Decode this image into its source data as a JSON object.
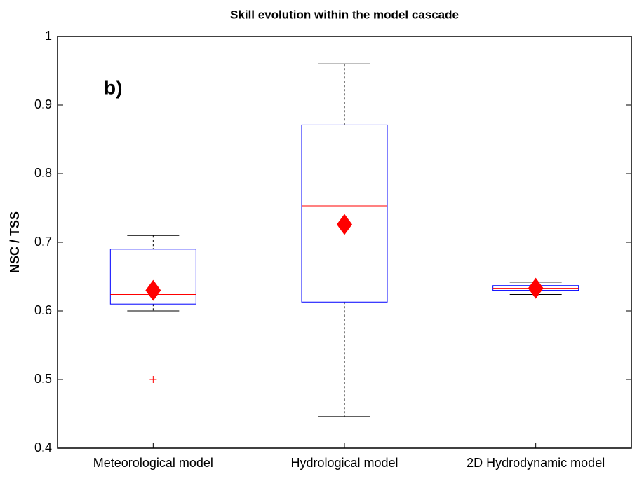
{
  "chart_data": {
    "type": "box",
    "title": "Skill evolution within the model cascade",
    "ylabel": "NSC / TSS",
    "annotation": "b)",
    "categories": [
      "Meteorological model",
      "Hydrological model",
      "2D Hydrodynamic model"
    ],
    "boxes": [
      {
        "whislo": 0.6,
        "q1": 0.61,
        "med": 0.624,
        "q3": 0.69,
        "whishi": 0.71,
        "mean": 0.63,
        "fliers": [
          0.5
        ]
      },
      {
        "whislo": 0.446,
        "q1": 0.613,
        "med": 0.753,
        "q3": 0.871,
        "whishi": 0.96,
        "mean": 0.726,
        "fliers": []
      },
      {
        "whislo": 0.624,
        "q1": 0.63,
        "med": 0.633,
        "q3": 0.637,
        "whishi": 0.642,
        "mean": 0.633,
        "fliers": []
      }
    ],
    "box_color": "#0000ff",
    "median_color": "#ff0000",
    "whisker_color": "#000000",
    "mean_color": "#ff0000",
    "ylim": [
      0.4,
      1
    ],
    "yticks": [
      0.4,
      0.5,
      0.6,
      0.7,
      0.8,
      0.9,
      1
    ],
    "grid": false
  }
}
